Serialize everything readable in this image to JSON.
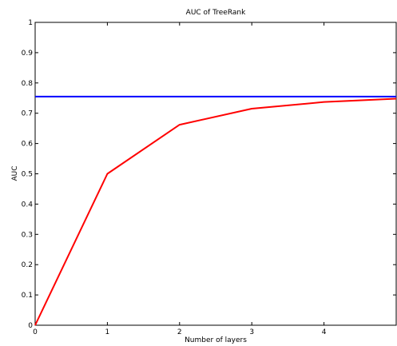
{
  "chart_data": {
    "type": "line",
    "title": "AUC of TreeRank",
    "xlabel": "Number of layers",
    "ylabel": "AUC",
    "xlim": [
      0,
      5
    ],
    "ylim": [
      0,
      1
    ],
    "xticks": [
      "0",
      "1",
      "2",
      "3",
      "4"
    ],
    "yticks": [
      "0",
      "0.1",
      "0.2",
      "0.3",
      "0.4",
      "0.5",
      "0.6",
      "0.7",
      "0.8",
      "0.9",
      "1"
    ],
    "grid": false,
    "series": [
      {
        "color": "#ff0000",
        "x": [
          0,
          1,
          2,
          3,
          4,
          5
        ],
        "y": [
          0.0,
          0.5,
          0.662,
          0.715,
          0.737,
          0.748
        ]
      },
      {
        "color": "#0000ff",
        "x": [
          0,
          5
        ],
        "y": [
          0.755,
          0.755
        ]
      }
    ]
  }
}
